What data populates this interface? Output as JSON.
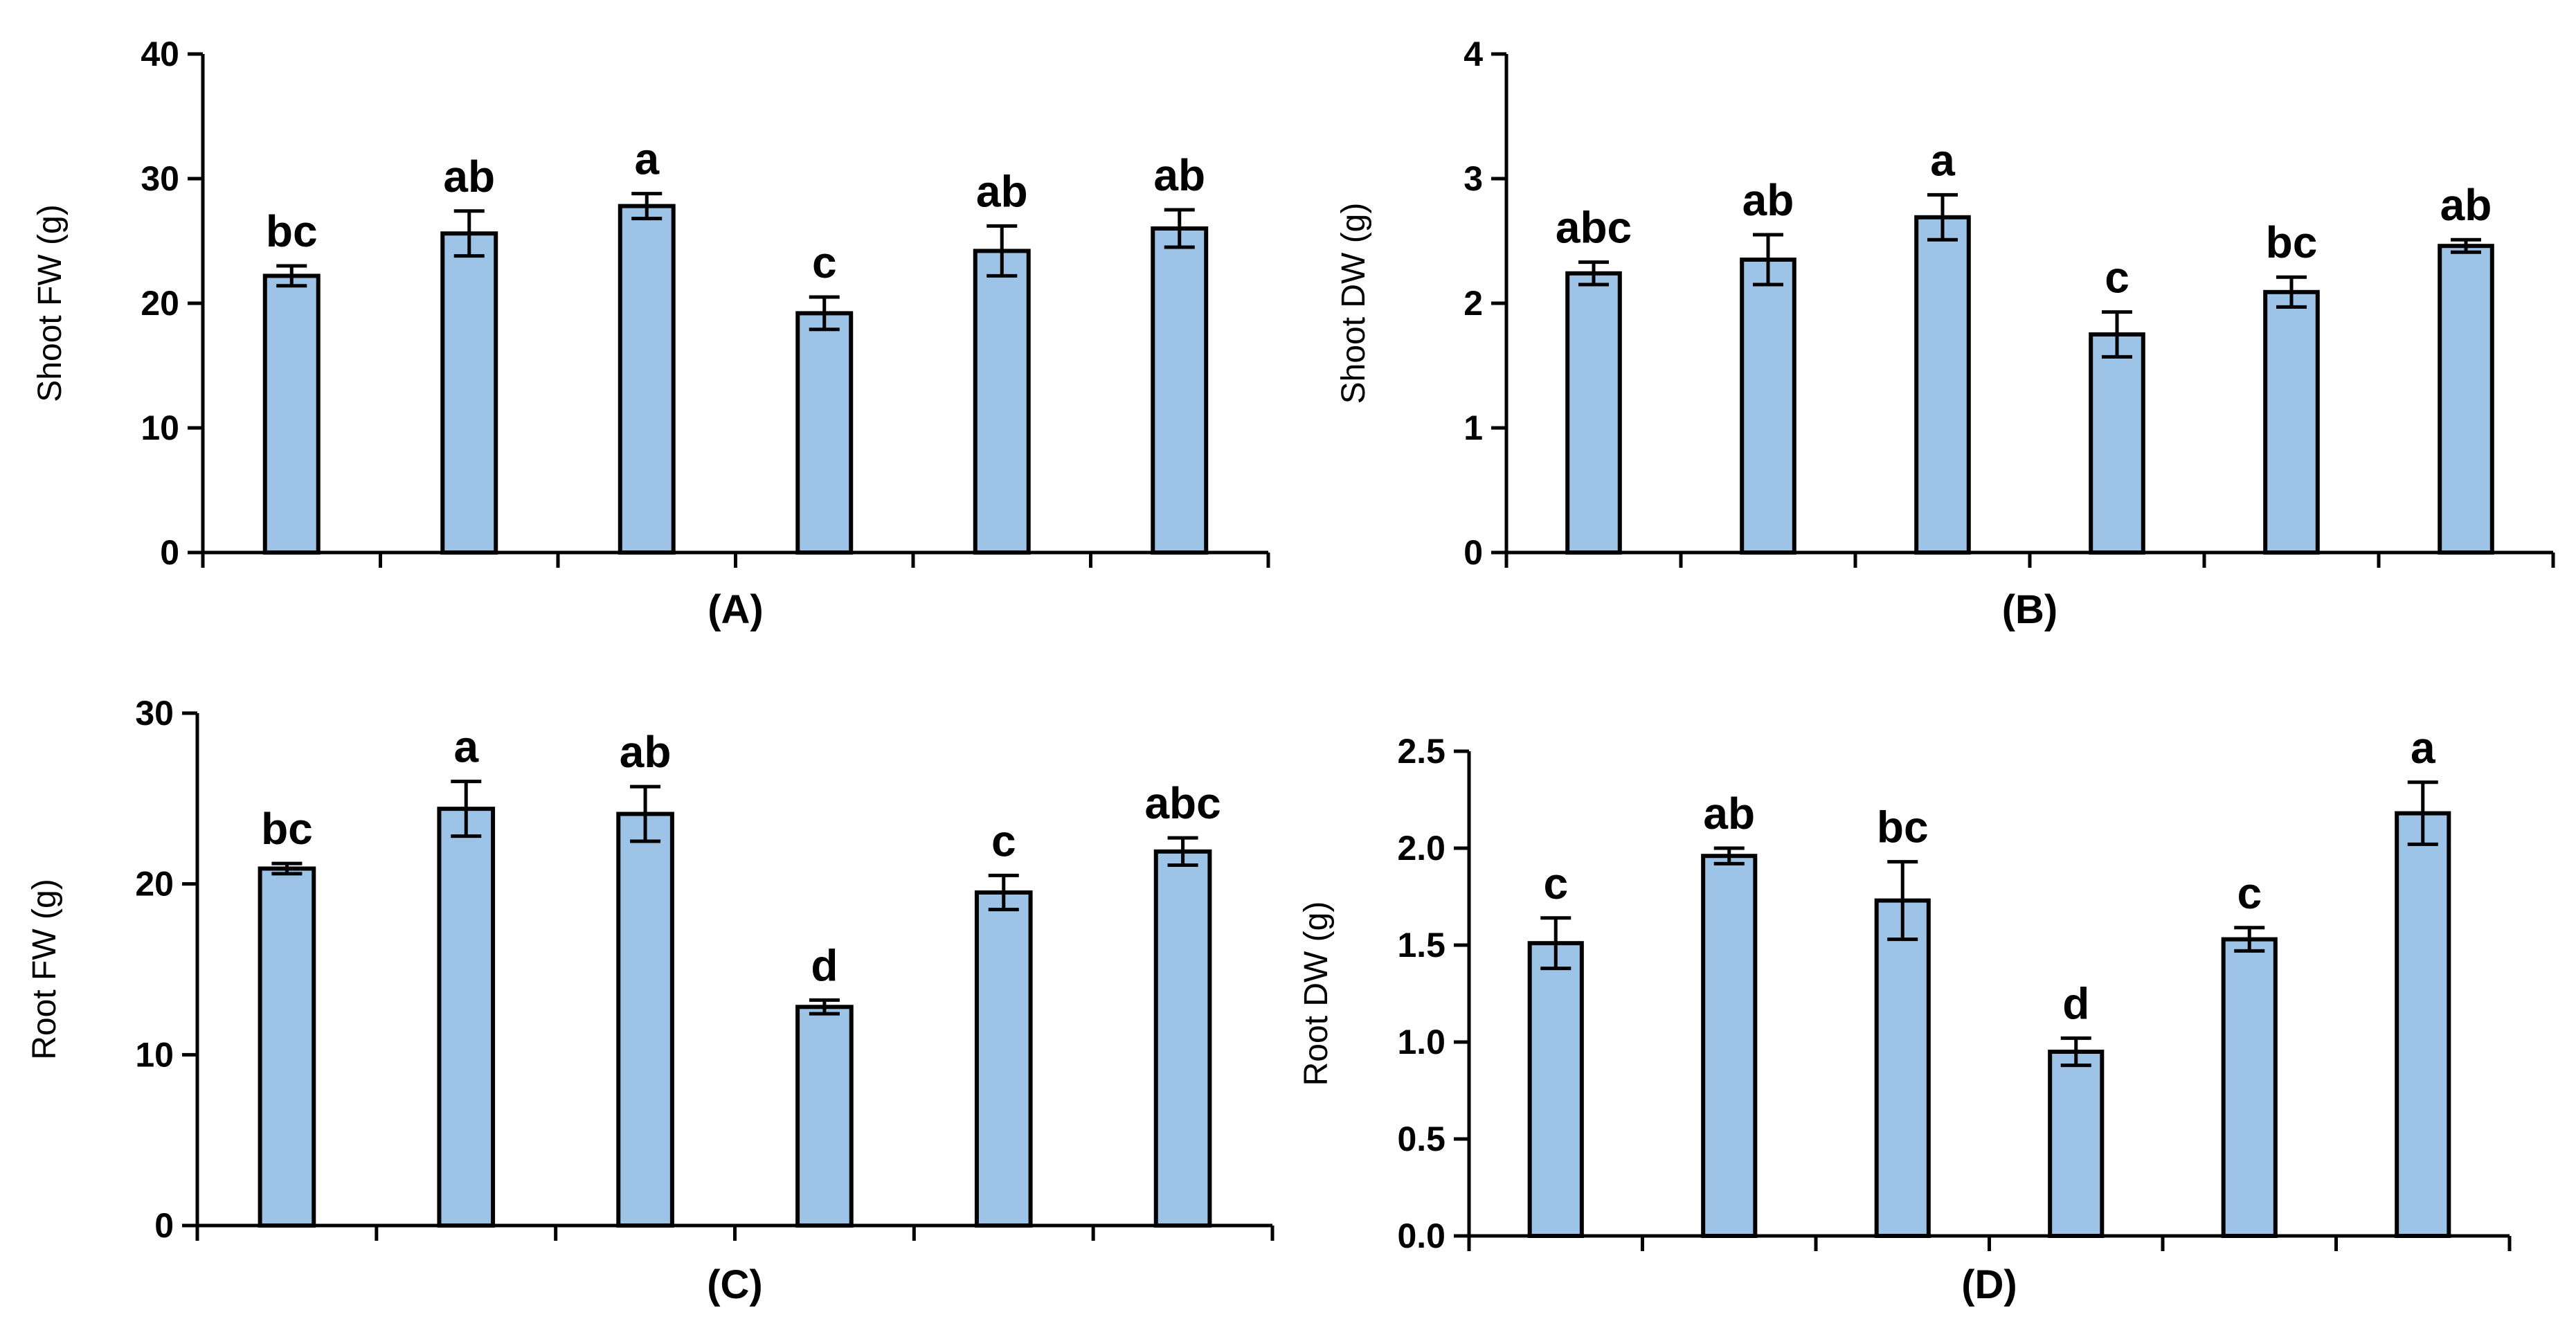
{
  "colors": {
    "bar_fill": "#9DC3E6",
    "stroke": "#000000"
  },
  "chart_data": [
    {
      "type": "bar",
      "panel_label": "(A)",
      "ylabel": "Shoot FW (g)",
      "ylim": [
        0,
        40
      ],
      "yticks": [
        "0",
        "10",
        "20",
        "30",
        "40"
      ],
      "values": [
        22.2,
        25.6,
        27.8,
        19.2,
        24.2,
        26.0
      ],
      "errors": [
        0.8,
        1.8,
        1.0,
        1.3,
        2.0,
        1.5
      ],
      "letters": [
        "bc",
        "ab",
        "a",
        "c",
        "ab",
        "ab"
      ]
    },
    {
      "type": "bar",
      "panel_label": "(B)",
      "ylabel": "Shoot DW (g)",
      "ylim": [
        0,
        4
      ],
      "yticks": [
        "0",
        "1",
        "2",
        "3",
        "4"
      ],
      "values": [
        2.24,
        2.35,
        2.69,
        1.75,
        2.09,
        2.46
      ],
      "errors": [
        0.09,
        0.2,
        0.18,
        0.18,
        0.12,
        0.05
      ],
      "letters": [
        "abc",
        "ab",
        "a",
        "c",
        "bc",
        "ab"
      ]
    },
    {
      "type": "bar",
      "panel_label": "(C)",
      "ylabel": "Root FW (g)",
      "ylim": [
        0,
        30
      ],
      "yticks": [
        "0",
        "10",
        "20",
        "30"
      ],
      "values": [
        20.9,
        24.4,
        24.1,
        12.8,
        19.5,
        21.9
      ],
      "errors": [
        0.3,
        1.6,
        1.6,
        0.4,
        1.0,
        0.8
      ],
      "letters": [
        "bc",
        "a",
        "ab",
        "d",
        "c",
        "abc"
      ]
    },
    {
      "type": "bar",
      "panel_label": "(D)",
      "ylabel": "Root DW (g)",
      "ylim": [
        0,
        2.5
      ],
      "yticks": [
        "0.0",
        "0.5",
        "1.0",
        "1.5",
        "2.0",
        "2.5"
      ],
      "values": [
        1.51,
        1.96,
        1.73,
        0.95,
        1.53,
        2.18
      ],
      "errors": [
        0.13,
        0.04,
        0.2,
        0.07,
        0.06,
        0.16
      ],
      "letters": [
        "c",
        "ab",
        "bc",
        "d",
        "c",
        "a"
      ]
    }
  ]
}
